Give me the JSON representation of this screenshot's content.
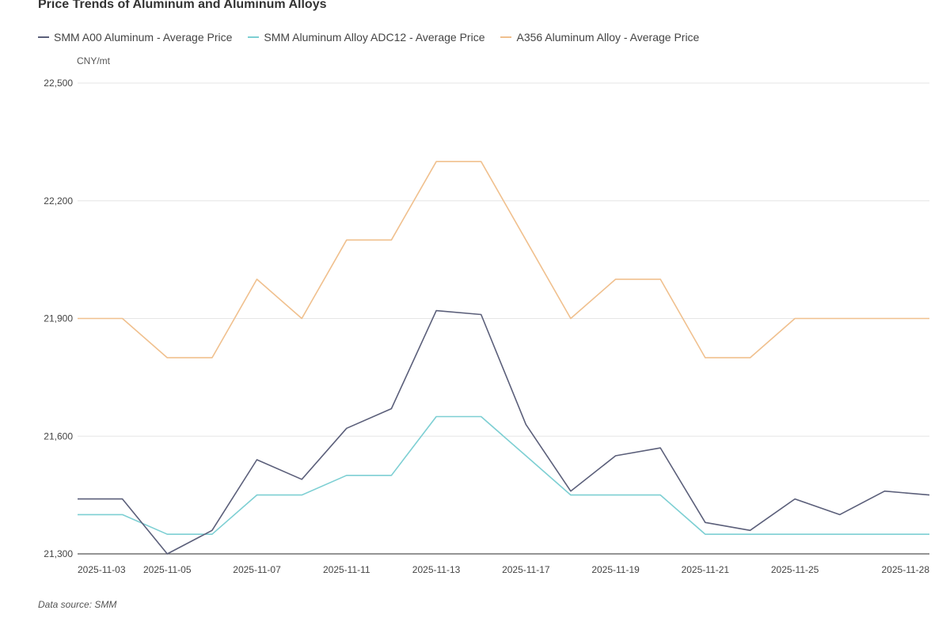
{
  "source_note": "Data source:  SMM",
  "chart_data": {
    "type": "line",
    "title": "Price Trends of Aluminum and Aluminum Alloys",
    "unit": "CNY/mt",
    "ylim": [
      21300,
      22500
    ],
    "yticks": [
      21300,
      21600,
      21900,
      22200,
      22500
    ],
    "ytick_labels": [
      "21,300",
      "21,600",
      "21,900",
      "22,200",
      "22,500"
    ],
    "x_labels": [
      "2025-11-03",
      "2025-11-05",
      "2025-11-07",
      "2025-11-11",
      "2025-11-13",
      "2025-11-17",
      "2025-11-19",
      "2025-11-21",
      "2025-11-25",
      "2025-11-28"
    ],
    "x_label_positions": [
      0,
      2,
      4,
      6,
      8,
      10,
      12,
      14,
      16,
      19
    ],
    "x_dates": [
      "2025-11-03",
      "2025-11-04",
      "2025-11-05",
      "2025-11-06",
      "2025-11-07",
      "2025-11-10",
      "2025-11-11",
      "2025-11-12",
      "2025-11-13",
      "2025-11-14",
      "2025-11-17",
      "2025-11-18",
      "2025-11-19",
      "2025-11-20",
      "2025-11-21",
      "2025-11-24",
      "2025-11-25",
      "2025-11-26",
      "2025-11-27",
      "2025-11-28"
    ],
    "grid": true,
    "legend_position": "top-left",
    "series": [
      {
        "name": "SMM A00 Aluminum - Average Price",
        "color": "#5b5f7a",
        "values": [
          21440,
          21440,
          21300,
          21360,
          21540,
          21490,
          21620,
          21670,
          21920,
          21910,
          21630,
          21460,
          21550,
          21570,
          21380,
          21360,
          21440,
          21400,
          21460,
          21450
        ]
      },
      {
        "name": "SMM Aluminum Alloy ADC12 - Average Price",
        "color": "#7dcfd3",
        "values": [
          21400,
          21400,
          21350,
          21350,
          21450,
          21450,
          21500,
          21500,
          21650,
          21650,
          21550,
          21450,
          21450,
          21450,
          21350,
          21350,
          21350,
          21350,
          21350,
          21350
        ]
      },
      {
        "name": "A356 Aluminum Alloy - Average Price",
        "color": "#f0c08e",
        "values": [
          21900,
          21900,
          21800,
          21800,
          22000,
          21900,
          22100,
          22100,
          22300,
          22300,
          22100,
          21900,
          22000,
          22000,
          21800,
          21800,
          21900,
          21900,
          21900,
          21900
        ]
      }
    ]
  }
}
